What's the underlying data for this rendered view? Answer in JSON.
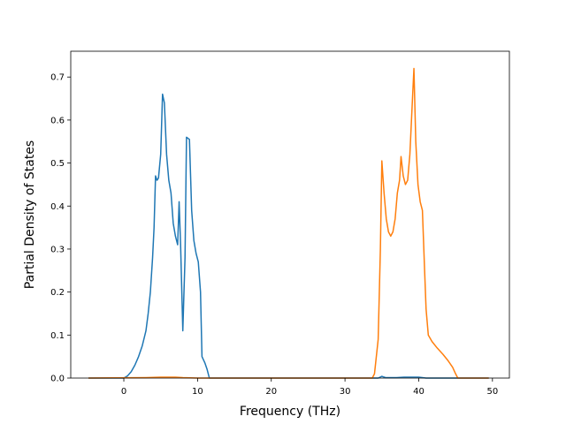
{
  "chart_data": {
    "type": "line",
    "title": "",
    "xlabel": "Frequency (THz)",
    "ylabel": "Partial Density of States",
    "xlim": [
      -7.2,
      52.3
    ],
    "ylim": [
      0,
      0.76
    ],
    "xticks": [
      0,
      10,
      20,
      30,
      40,
      50
    ],
    "yticks": [
      0.0,
      0.1,
      0.2,
      0.3,
      0.4,
      0.5,
      0.6,
      0.7
    ],
    "xtick_labels": [
      "0",
      "10",
      "20",
      "30",
      "40",
      "50"
    ],
    "ytick_labels": [
      "0.0",
      "0.1",
      "0.2",
      "0.3",
      "0.4",
      "0.5",
      "0.6",
      "0.7"
    ],
    "grid": false,
    "legend": "none",
    "series": [
      {
        "color": "#1f77b4",
        "points": [
          [
            -4.8,
            0
          ],
          [
            0,
            0
          ],
          [
            0.5,
            0.005
          ],
          [
            1,
            0.015
          ],
          [
            1.5,
            0.03
          ],
          [
            2,
            0.05
          ],
          [
            2.5,
            0.075
          ],
          [
            3,
            0.11
          ],
          [
            3.3,
            0.15
          ],
          [
            3.6,
            0.2
          ],
          [
            3.9,
            0.28
          ],
          [
            4.1,
            0.35
          ],
          [
            4.3,
            0.47
          ],
          [
            4.5,
            0.46
          ],
          [
            4.7,
            0.465
          ],
          [
            5,
            0.52
          ],
          [
            5.25,
            0.66
          ],
          [
            5.5,
            0.64
          ],
          [
            5.8,
            0.52
          ],
          [
            6.1,
            0.46
          ],
          [
            6.4,
            0.43
          ],
          [
            6.7,
            0.36
          ],
          [
            7,
            0.33
          ],
          [
            7.3,
            0.31
          ],
          [
            7.5,
            0.41
          ],
          [
            7.7,
            0.31
          ],
          [
            8,
            0.11
          ],
          [
            8.3,
            0.28
          ],
          [
            8.5,
            0.56
          ],
          [
            8.9,
            0.555
          ],
          [
            9.2,
            0.39
          ],
          [
            9.5,
            0.32
          ],
          [
            9.8,
            0.29
          ],
          [
            10.1,
            0.27
          ],
          [
            10.4,
            0.2
          ],
          [
            10.6,
            0.05
          ],
          [
            11,
            0.035
          ],
          [
            11.3,
            0.02
          ],
          [
            11.6,
            0
          ],
          [
            20,
            0
          ],
          [
            30,
            0
          ],
          [
            34.5,
            0
          ],
          [
            35,
            0.004
          ],
          [
            35.5,
            0.001
          ],
          [
            37,
            0.001
          ],
          [
            38,
            0.002
          ],
          [
            39,
            0.002
          ],
          [
            40,
            0.002
          ],
          [
            40.5,
            0.001
          ],
          [
            41,
            0
          ],
          [
            49.5,
            0
          ]
        ]
      },
      {
        "color": "#ff7f0e",
        "points": [
          [
            -4.8,
            0
          ],
          [
            3,
            0.001
          ],
          [
            5,
            0.002
          ],
          [
            7,
            0.002
          ],
          [
            8,
            0.001
          ],
          [
            10,
            0
          ],
          [
            20,
            0
          ],
          [
            33.7,
            0
          ],
          [
            34,
            0.01
          ],
          [
            34.5,
            0.09
          ],
          [
            34.8,
            0.3
          ],
          [
            35,
            0.505
          ],
          [
            35.3,
            0.43
          ],
          [
            35.6,
            0.37
          ],
          [
            35.9,
            0.34
          ],
          [
            36.2,
            0.33
          ],
          [
            36.5,
            0.34
          ],
          [
            36.8,
            0.37
          ],
          [
            37.1,
            0.43
          ],
          [
            37.4,
            0.46
          ],
          [
            37.6,
            0.515
          ],
          [
            37.9,
            0.47
          ],
          [
            38.2,
            0.45
          ],
          [
            38.5,
            0.46
          ],
          [
            38.8,
            0.52
          ],
          [
            39.1,
            0.63
          ],
          [
            39.35,
            0.72
          ],
          [
            39.6,
            0.55
          ],
          [
            39.9,
            0.45
          ],
          [
            40.2,
            0.41
          ],
          [
            40.5,
            0.39
          ],
          [
            40.8,
            0.25
          ],
          [
            41,
            0.16
          ],
          [
            41.3,
            0.1
          ],
          [
            41.8,
            0.085
          ],
          [
            42.5,
            0.07
          ],
          [
            43.3,
            0.055
          ],
          [
            44,
            0.04
          ],
          [
            44.6,
            0.025
          ],
          [
            45,
            0.01
          ],
          [
            45.3,
            0
          ],
          [
            49.5,
            0
          ]
        ]
      }
    ]
  }
}
